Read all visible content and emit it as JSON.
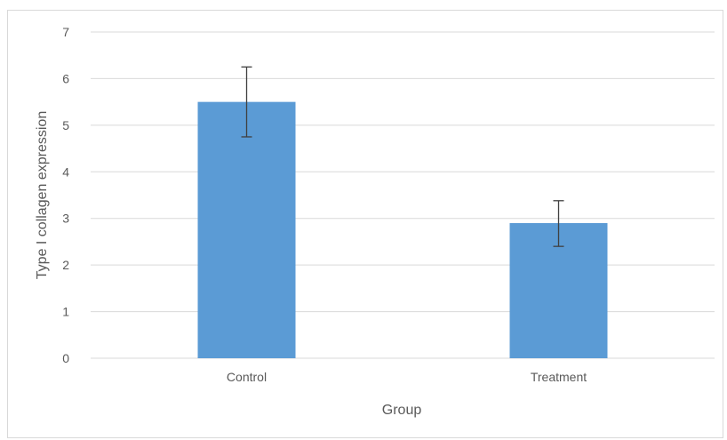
{
  "chart_data": {
    "type": "bar",
    "categories": [
      "Control",
      "Treatment"
    ],
    "values": [
      5.5,
      2.9
    ],
    "error": [
      {
        "low": 4.75,
        "high": 6.25
      },
      {
        "low": 2.4,
        "high": 3.38
      }
    ],
    "title": "",
    "xlabel": "Group",
    "ylabel": "Type I collagen expression",
    "ylim": [
      0,
      7
    ],
    "yticks": [
      "0",
      "1",
      "2",
      "3",
      "4",
      "5",
      "6",
      "7"
    ],
    "grid": true,
    "colors": {
      "bar": "#5b9bd5",
      "grid": "#d9d9d9",
      "errorbar": "#404040"
    }
  }
}
